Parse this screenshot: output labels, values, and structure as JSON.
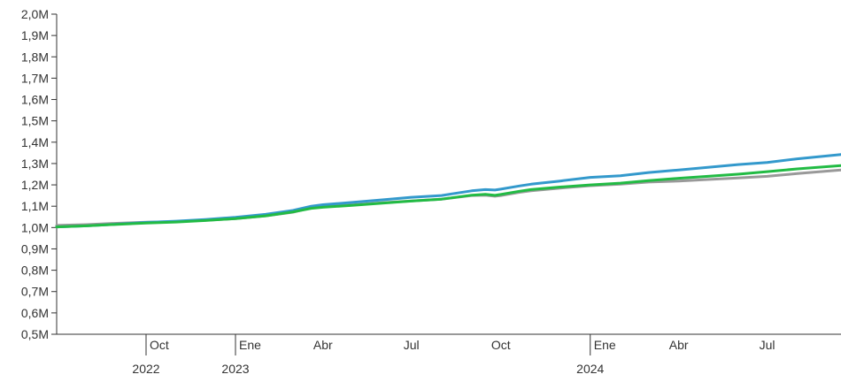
{
  "chart_data": {
    "type": "line",
    "y_tick_labels": [
      "0,5M",
      "0,6M",
      "0,7M",
      "0,8M",
      "0,9M",
      "1,0M",
      "1,1M",
      "1,2M",
      "1,3M",
      "1,4M",
      "1,5M",
      "1,6M",
      "1,7M",
      "1,8M",
      "1,9M",
      "2,0M"
    ],
    "y_ticks": [
      500000,
      600000,
      700000,
      800000,
      900000,
      1000000,
      1100000,
      1200000,
      1300000,
      1400000,
      1500000,
      1600000,
      1700000,
      1800000,
      1900000,
      2000000
    ],
    "ylim": [
      500000,
      2000000
    ],
    "xlim": [
      "2022-07-01",
      "2024-09-15"
    ],
    "x_month_ticks": [
      {
        "date": "2022-10-01",
        "label": "Oct",
        "major": true
      },
      {
        "date": "2023-01-01",
        "label": "Ene",
        "major": true
      },
      {
        "date": "2023-04-01",
        "label": "Abr",
        "major": false
      },
      {
        "date": "2023-07-01",
        "label": "Jul",
        "major": false
      },
      {
        "date": "2023-10-01",
        "label": "Oct",
        "major": false
      },
      {
        "date": "2024-01-01",
        "label": "Ene",
        "major": true
      },
      {
        "date": "2024-04-01",
        "label": "Abr",
        "major": false
      },
      {
        "date": "2024-07-01",
        "label": "Jul",
        "major": false
      }
    ],
    "x_year_labels": [
      {
        "date": "2022-10-01",
        "label": "2022"
      },
      {
        "date": "2023-01-01",
        "label": "2023"
      },
      {
        "date": "2024-01-01",
        "label": "2024"
      }
    ],
    "series": [
      {
        "color": "#999999",
        "points": [
          [
            "2022-07-01",
            1010000
          ],
          [
            "2022-08-01",
            1014000
          ],
          [
            "2022-09-01",
            1020000
          ],
          [
            "2022-10-01",
            1025000
          ],
          [
            "2022-11-01",
            1028000
          ],
          [
            "2022-12-01",
            1034000
          ],
          [
            "2023-01-01",
            1042000
          ],
          [
            "2023-02-01",
            1055000
          ],
          [
            "2023-03-01",
            1072000
          ],
          [
            "2023-03-20",
            1092000
          ],
          [
            "2023-04-01",
            1097000
          ],
          [
            "2023-05-01",
            1106000
          ],
          [
            "2023-06-01",
            1116000
          ],
          [
            "2023-07-01",
            1125000
          ],
          [
            "2023-08-01",
            1133000
          ],
          [
            "2023-09-01",
            1150000
          ],
          [
            "2023-09-15",
            1152000
          ],
          [
            "2023-09-25",
            1147000
          ],
          [
            "2023-10-01",
            1150000
          ],
          [
            "2023-10-20",
            1165000
          ],
          [
            "2023-11-01",
            1172000
          ],
          [
            "2023-12-01",
            1185000
          ],
          [
            "2024-01-01",
            1196000
          ],
          [
            "2024-02-01",
            1203000
          ],
          [
            "2024-03-01",
            1213000
          ],
          [
            "2024-04-01",
            1218000
          ],
          [
            "2024-05-01",
            1225000
          ],
          [
            "2024-06-01",
            1232000
          ],
          [
            "2024-07-01",
            1240000
          ],
          [
            "2024-08-01",
            1253000
          ],
          [
            "2024-09-15",
            1270000
          ]
        ]
      },
      {
        "color": "#3399cc",
        "points": [
          [
            "2022-07-01",
            1003000
          ],
          [
            "2022-08-01",
            1008000
          ],
          [
            "2022-09-01",
            1016000
          ],
          [
            "2022-10-01",
            1024000
          ],
          [
            "2022-11-01",
            1030000
          ],
          [
            "2022-12-01",
            1038000
          ],
          [
            "2023-01-01",
            1048000
          ],
          [
            "2023-02-01",
            1062000
          ],
          [
            "2023-03-01",
            1080000
          ],
          [
            "2023-03-20",
            1100000
          ],
          [
            "2023-04-01",
            1107000
          ],
          [
            "2023-05-01",
            1118000
          ],
          [
            "2023-06-01",
            1130000
          ],
          [
            "2023-07-01",
            1142000
          ],
          [
            "2023-08-01",
            1150000
          ],
          [
            "2023-09-01",
            1172000
          ],
          [
            "2023-09-15",
            1178000
          ],
          [
            "2023-09-25",
            1176000
          ],
          [
            "2023-10-01",
            1180000
          ],
          [
            "2023-10-20",
            1195000
          ],
          [
            "2023-11-01",
            1203000
          ],
          [
            "2023-12-01",
            1218000
          ],
          [
            "2024-01-01",
            1235000
          ],
          [
            "2024-02-01",
            1243000
          ],
          [
            "2024-03-01",
            1258000
          ],
          [
            "2024-04-01",
            1270000
          ],
          [
            "2024-05-01",
            1282000
          ],
          [
            "2024-06-01",
            1295000
          ],
          [
            "2024-07-01",
            1305000
          ],
          [
            "2024-08-01",
            1322000
          ],
          [
            "2024-09-15",
            1342000
          ]
        ]
      },
      {
        "color": "#22bb44",
        "points": [
          [
            "2022-07-01",
            1003000
          ],
          [
            "2022-08-01",
            1008000
          ],
          [
            "2022-09-01",
            1015000
          ],
          [
            "2022-10-01",
            1021000
          ],
          [
            "2022-11-01",
            1026000
          ],
          [
            "2022-12-01",
            1033000
          ],
          [
            "2023-01-01",
            1042000
          ],
          [
            "2023-02-01",
            1055000
          ],
          [
            "2023-03-01",
            1073000
          ],
          [
            "2023-03-20",
            1090000
          ],
          [
            "2023-04-01",
            1095000
          ],
          [
            "2023-05-01",
            1104000
          ],
          [
            "2023-06-01",
            1114000
          ],
          [
            "2023-07-01",
            1124000
          ],
          [
            "2023-08-01",
            1133000
          ],
          [
            "2023-09-01",
            1152000
          ],
          [
            "2023-09-15",
            1156000
          ],
          [
            "2023-09-25",
            1151000
          ],
          [
            "2023-10-01",
            1155000
          ],
          [
            "2023-10-20",
            1170000
          ],
          [
            "2023-11-01",
            1178000
          ],
          [
            "2023-12-01",
            1190000
          ],
          [
            "2024-01-01",
            1200000
          ],
          [
            "2024-02-01",
            1208000
          ],
          [
            "2024-03-01",
            1220000
          ],
          [
            "2024-04-01",
            1231000
          ],
          [
            "2024-05-01",
            1240000
          ],
          [
            "2024-06-01",
            1250000
          ],
          [
            "2024-07-01",
            1262000
          ],
          [
            "2024-08-01",
            1275000
          ],
          [
            "2024-09-15",
            1290000
          ]
        ]
      }
    ]
  }
}
